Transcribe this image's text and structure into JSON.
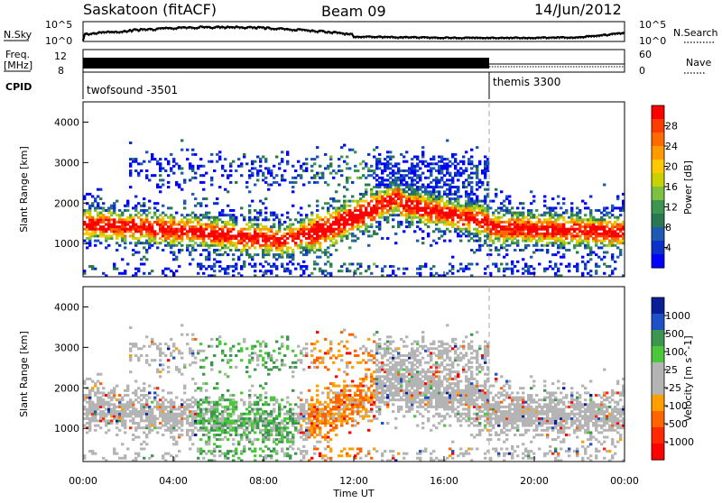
{
  "header": {
    "radar": "Saskatoon (fitACF)",
    "beam": "Beam 09",
    "date": "14/Jun/2012"
  },
  "noise_panel": {
    "left_label": "N.Sky",
    "right_label": "N.Search",
    "left_ticks": [
      "10^5",
      "10^0"
    ],
    "right_ticks": [
      "10^5",
      "10^0"
    ]
  },
  "freq_panel": {
    "left_label_line1": "Freq.",
    "left_label_line2": "[MHz]",
    "left_ticks": [
      "12",
      "8"
    ],
    "right_label": "Nave",
    "right_ticks": [
      "60",
      "0"
    ]
  },
  "cpid_panel": {
    "label": "CPID",
    "segments": [
      {
        "name": "twofsound -3501",
        "start_hour": 0
      },
      {
        "name": "themis 3300",
        "start_hour": 18
      }
    ]
  },
  "chart_data": [
    {
      "type": "heatmap",
      "name": "power",
      "ylabel": "Slant Range [km]",
      "xlabel": "Time UT",
      "xlim": [
        0,
        24
      ],
      "ylim": [
        180,
        4500
      ],
      "y_ticks": [
        "1000",
        "2000",
        "3000",
        "4000"
      ],
      "x_ticks": [
        "00:00",
        "04:00",
        "08:00",
        "12:00",
        "16:00",
        "20:00",
        "00:00"
      ],
      "colorbar_label": "Power [dB]",
      "colorbar_ticks": [
        "28",
        "24",
        "20",
        "16",
        "12",
        "8",
        "4"
      ],
      "colorbar_colors": [
        "#ff0000",
        "#ff3c00",
        "#ff6a00",
        "#ff9a00",
        "#ffc800",
        "#c8d200",
        "#80c040",
        "#3c9650",
        "#2a7850",
        "#1e5ab4",
        "#0a32c8",
        "#0000ff"
      ]
    },
    {
      "type": "heatmap",
      "name": "velocity",
      "ylabel": "Slant Range [km]",
      "xlabel": "Time UT",
      "xlim": [
        0,
        24
      ],
      "ylim": [
        180,
        4500
      ],
      "y_ticks": [
        "1000",
        "2000",
        "3000",
        "4000"
      ],
      "x_ticks": [
        "00:00",
        "04:00",
        "08:00",
        "12:00",
        "16:00",
        "20:00",
        "00:00"
      ],
      "colorbar_label": "Velocity [m s^-1]",
      "colorbar_ticks": [
        "1000",
        "500",
        "100",
        "25",
        "-25",
        "-100",
        "-500",
        "-1000"
      ],
      "colorbar_colors": [
        "#0a1e96",
        "#1e50c8",
        "#3c9650",
        "#4cc83c",
        "#b4b4b4",
        "#b4b4b4",
        "#ffa000",
        "#ff6400",
        "#ff2800",
        "#ff0000"
      ]
    }
  ],
  "x_axis": {
    "label": "Time UT",
    "ticks": [
      "00:00",
      "04:00",
      "08:00",
      "12:00",
      "16:00",
      "20:00",
      "00:00"
    ]
  }
}
